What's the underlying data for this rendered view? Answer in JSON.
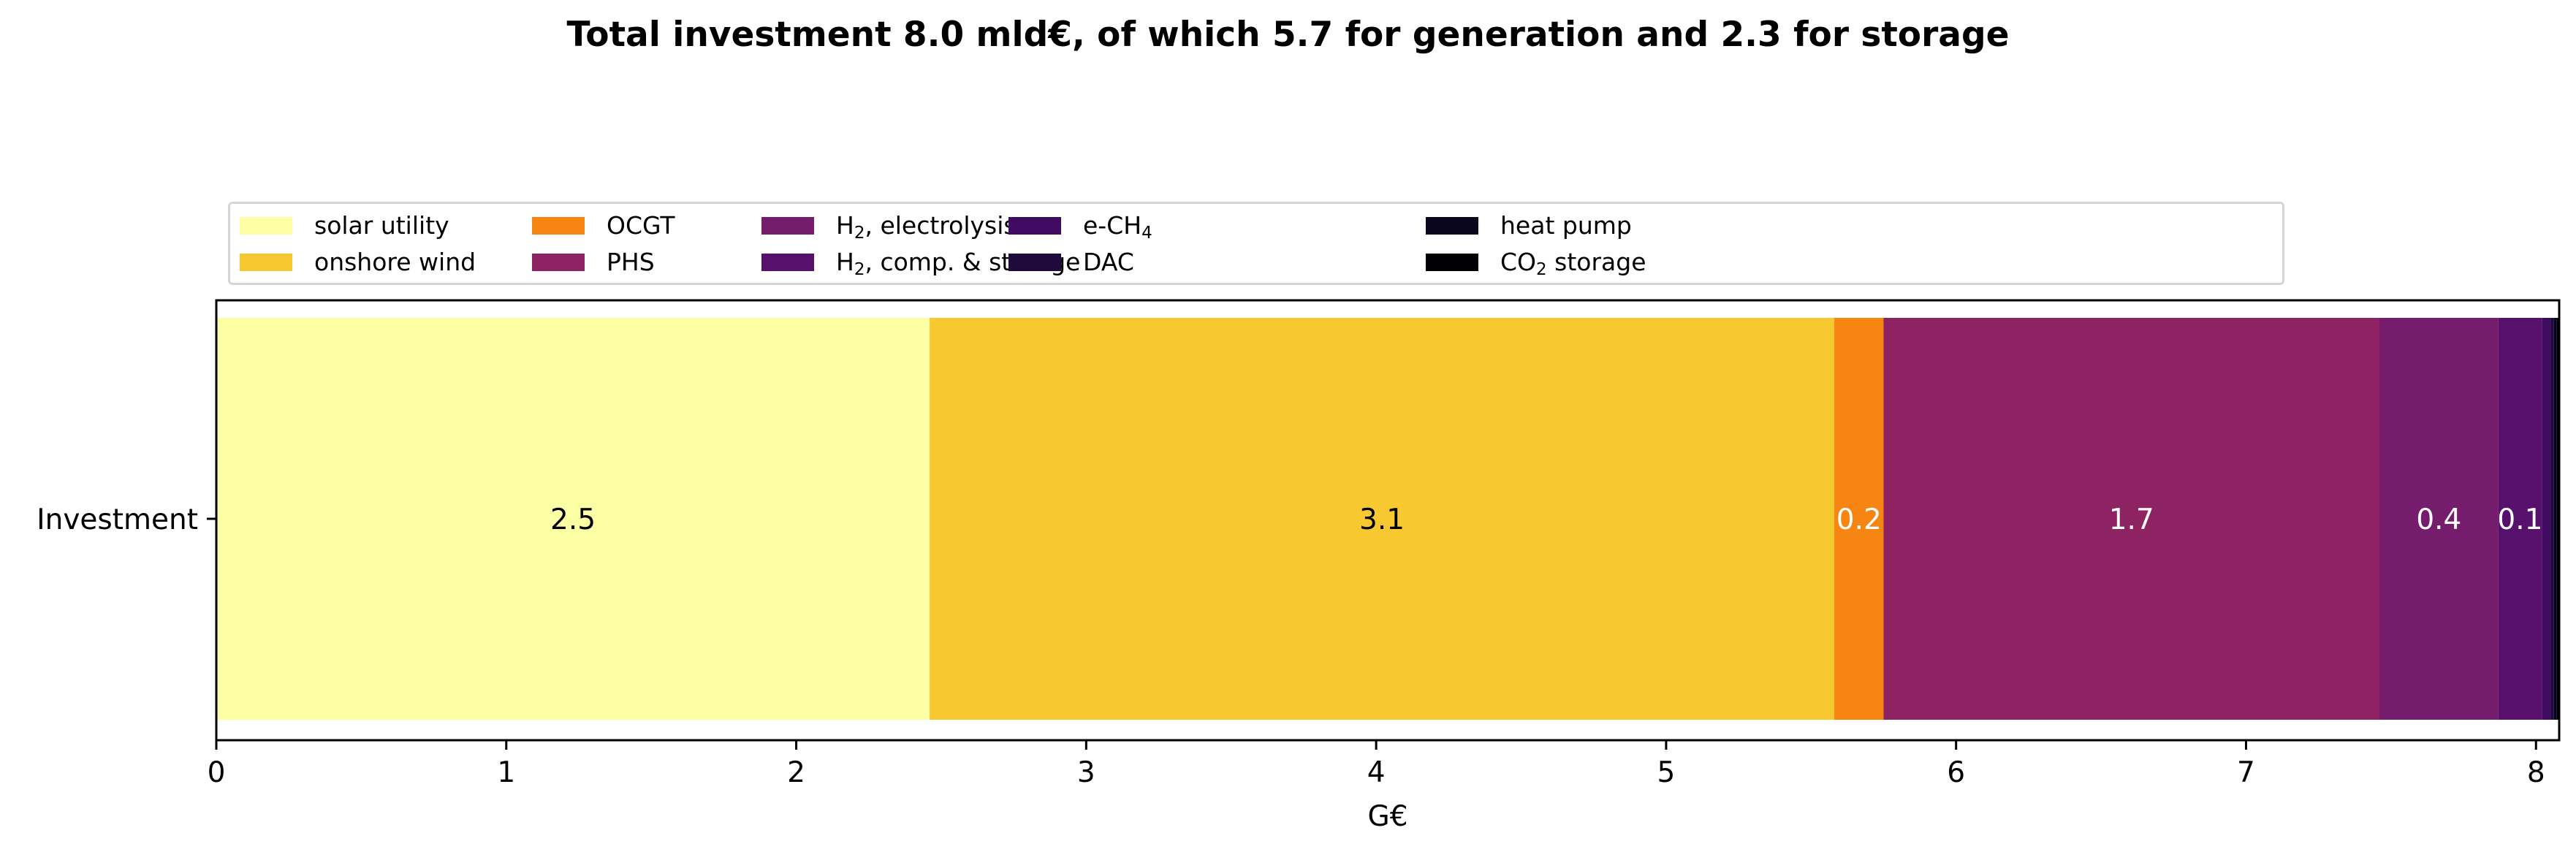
{
  "chart_data": {
    "type": "bar",
    "orientation": "horizontal",
    "stacked": true,
    "title": "Total investment 8.0 mld€, of which 5.7 for generation and 2.3 for storage",
    "xlabel": "G€",
    "ylabel": "",
    "categories": [
      "Investment"
    ],
    "xlim": [
      0,
      8.08
    ],
    "xticks": [
      "0",
      "1",
      "2",
      "3",
      "4",
      "5",
      "6",
      "7",
      "8"
    ],
    "grid": false,
    "legend_position": "top",
    "series": [
      {
        "name": "solar utility",
        "value": 2.46,
        "color": "#fcfea4",
        "label": "2.5",
        "label_color": "#000000"
      },
      {
        "name": "onshore wind",
        "value": 3.12,
        "color": "#f8c830",
        "label": "3.1",
        "label_color": "#000000"
      },
      {
        "name": "OCGT",
        "value": 0.17,
        "color": "#f68512",
        "label": "0.2",
        "label_color": "#ffffff"
      },
      {
        "name": "PHS",
        "value": 1.71,
        "color": "#8e2364",
        "label": "1.7",
        "label_color": "#ffffff"
      },
      {
        "name": "H2, electrolysis",
        "value": 0.41,
        "color": "#761c6c",
        "label": "0.4",
        "label_color": "#ffffff"
      },
      {
        "name": "H2, comp. & storage",
        "value": 0.15,
        "color": "#58106d",
        "label": "0.1",
        "label_color": "#ffffff"
      },
      {
        "name": "e-CH4",
        "value": 0.03,
        "color": "#3e0a62",
        "label": "",
        "label_color": "#ffffff"
      },
      {
        "name": "DAC",
        "value": 0.012,
        "color": "#1e0a3b",
        "label": "",
        "label_color": "#ffffff"
      },
      {
        "name": "heat pump",
        "value": 0.01,
        "color": "#0b0620",
        "label": "",
        "label_color": "#ffffff"
      },
      {
        "name": "CO2 storage",
        "value": 0.008,
        "color": "#000004",
        "label": "",
        "label_color": "#ffffff"
      }
    ]
  },
  "legend": {
    "items": [
      {
        "base": "solar utility",
        "sub": "",
        "rest": ""
      },
      {
        "base": "onshore wind",
        "sub": "",
        "rest": ""
      },
      {
        "base": "OCGT",
        "sub": "",
        "rest": ""
      },
      {
        "base": "PHS",
        "sub": "",
        "rest": ""
      },
      {
        "base": "H",
        "sub": "2",
        "rest": ", electrolysis"
      },
      {
        "base": "H",
        "sub": "2",
        "rest": ", comp. & storage"
      },
      {
        "base": "e-CH",
        "sub": "4",
        "rest": ""
      },
      {
        "base": "DAC",
        "sub": "",
        "rest": ""
      },
      {
        "base": "heat pump",
        "sub": "",
        "rest": ""
      },
      {
        "base": "CO",
        "sub": "2",
        "rest": " storage"
      }
    ]
  }
}
